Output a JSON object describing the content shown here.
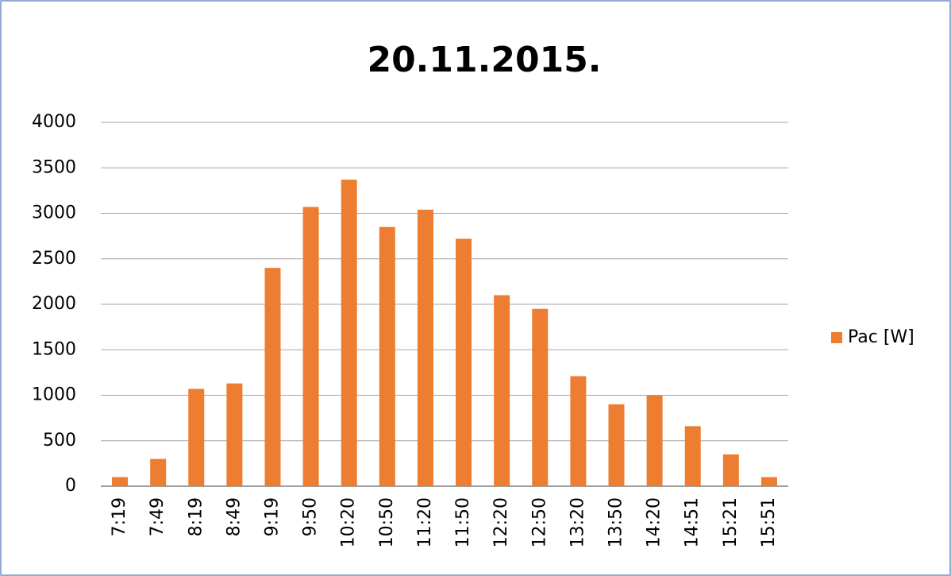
{
  "chart_data": {
    "type": "bar",
    "title": "20.11.2015.",
    "categories": [
      "7:19",
      "7:49",
      "8:19",
      "8:49",
      "9:19",
      "9:50",
      "10:20",
      "10:50",
      "11:20",
      "11:50",
      "12:20",
      "12:50",
      "13:20",
      "13:50",
      "14:20",
      "14:51",
      "15:21",
      "15:51"
    ],
    "series": [
      {
        "name": "Pac [W]",
        "color": "#ed7d31",
        "values": [
          100,
          300,
          1070,
          1130,
          2400,
          3070,
          3370,
          2850,
          3040,
          2720,
          2100,
          1950,
          1210,
          900,
          1000,
          660,
          350,
          100
        ]
      }
    ],
    "ylim": [
      0,
      4000
    ],
    "yticks": [
      0,
      500,
      1000,
      1500,
      2000,
      2500,
      3000,
      3500,
      4000
    ],
    "grid": true,
    "legend": "right"
  }
}
